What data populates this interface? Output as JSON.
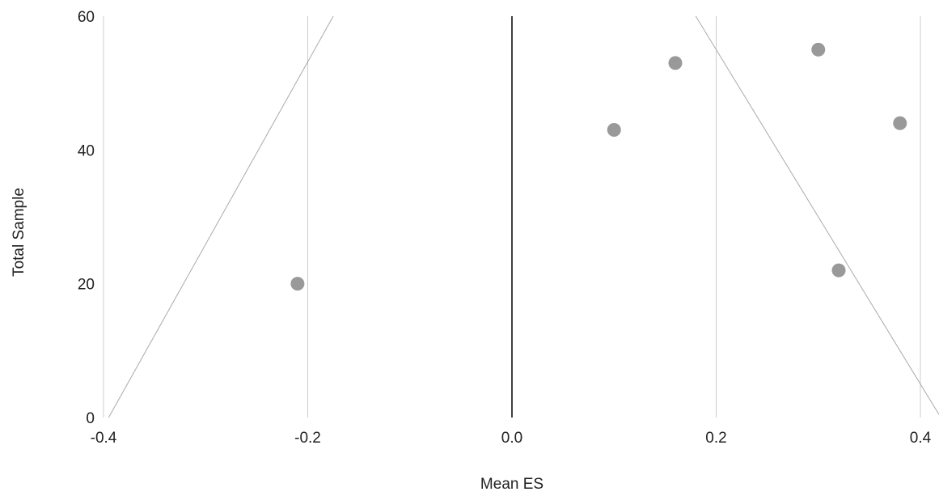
{
  "chart_data": {
    "type": "scatter",
    "title": "",
    "xlabel": "Mean ES",
    "ylabel": "Total Sample",
    "xlim": [
      -0.4,
      0.4
    ],
    "ylim": [
      0,
      60
    ],
    "x_ticks": [
      "-0.4",
      "-0.2",
      "0.0",
      "0.2",
      "0.4"
    ],
    "y_ticks": [
      "0",
      "20",
      "40",
      "60"
    ],
    "grid": "vertical",
    "legend": "none",
    "points": [
      {
        "x": -0.21,
        "y": 20
      },
      {
        "x": 0.1,
        "y": 43
      },
      {
        "x": 0.16,
        "y": 53
      },
      {
        "x": 0.3,
        "y": 55
      },
      {
        "x": 0.32,
        "y": 22
      },
      {
        "x": 0.38,
        "y": 44
      }
    ],
    "reference_line": {
      "x": 0.0,
      "color": "#000000"
    },
    "funnel_lines": [
      {
        "x1": -0.395,
        "y1": 0,
        "x2": -0.175,
        "y2": 60
      },
      {
        "x1": 0.18,
        "y1": 60,
        "x2": 0.42,
        "y2": 0
      }
    ],
    "colors": {
      "points": "#999999",
      "grid": "#cccccc",
      "funnel": "#aaaaaa",
      "text": "#222222"
    }
  }
}
